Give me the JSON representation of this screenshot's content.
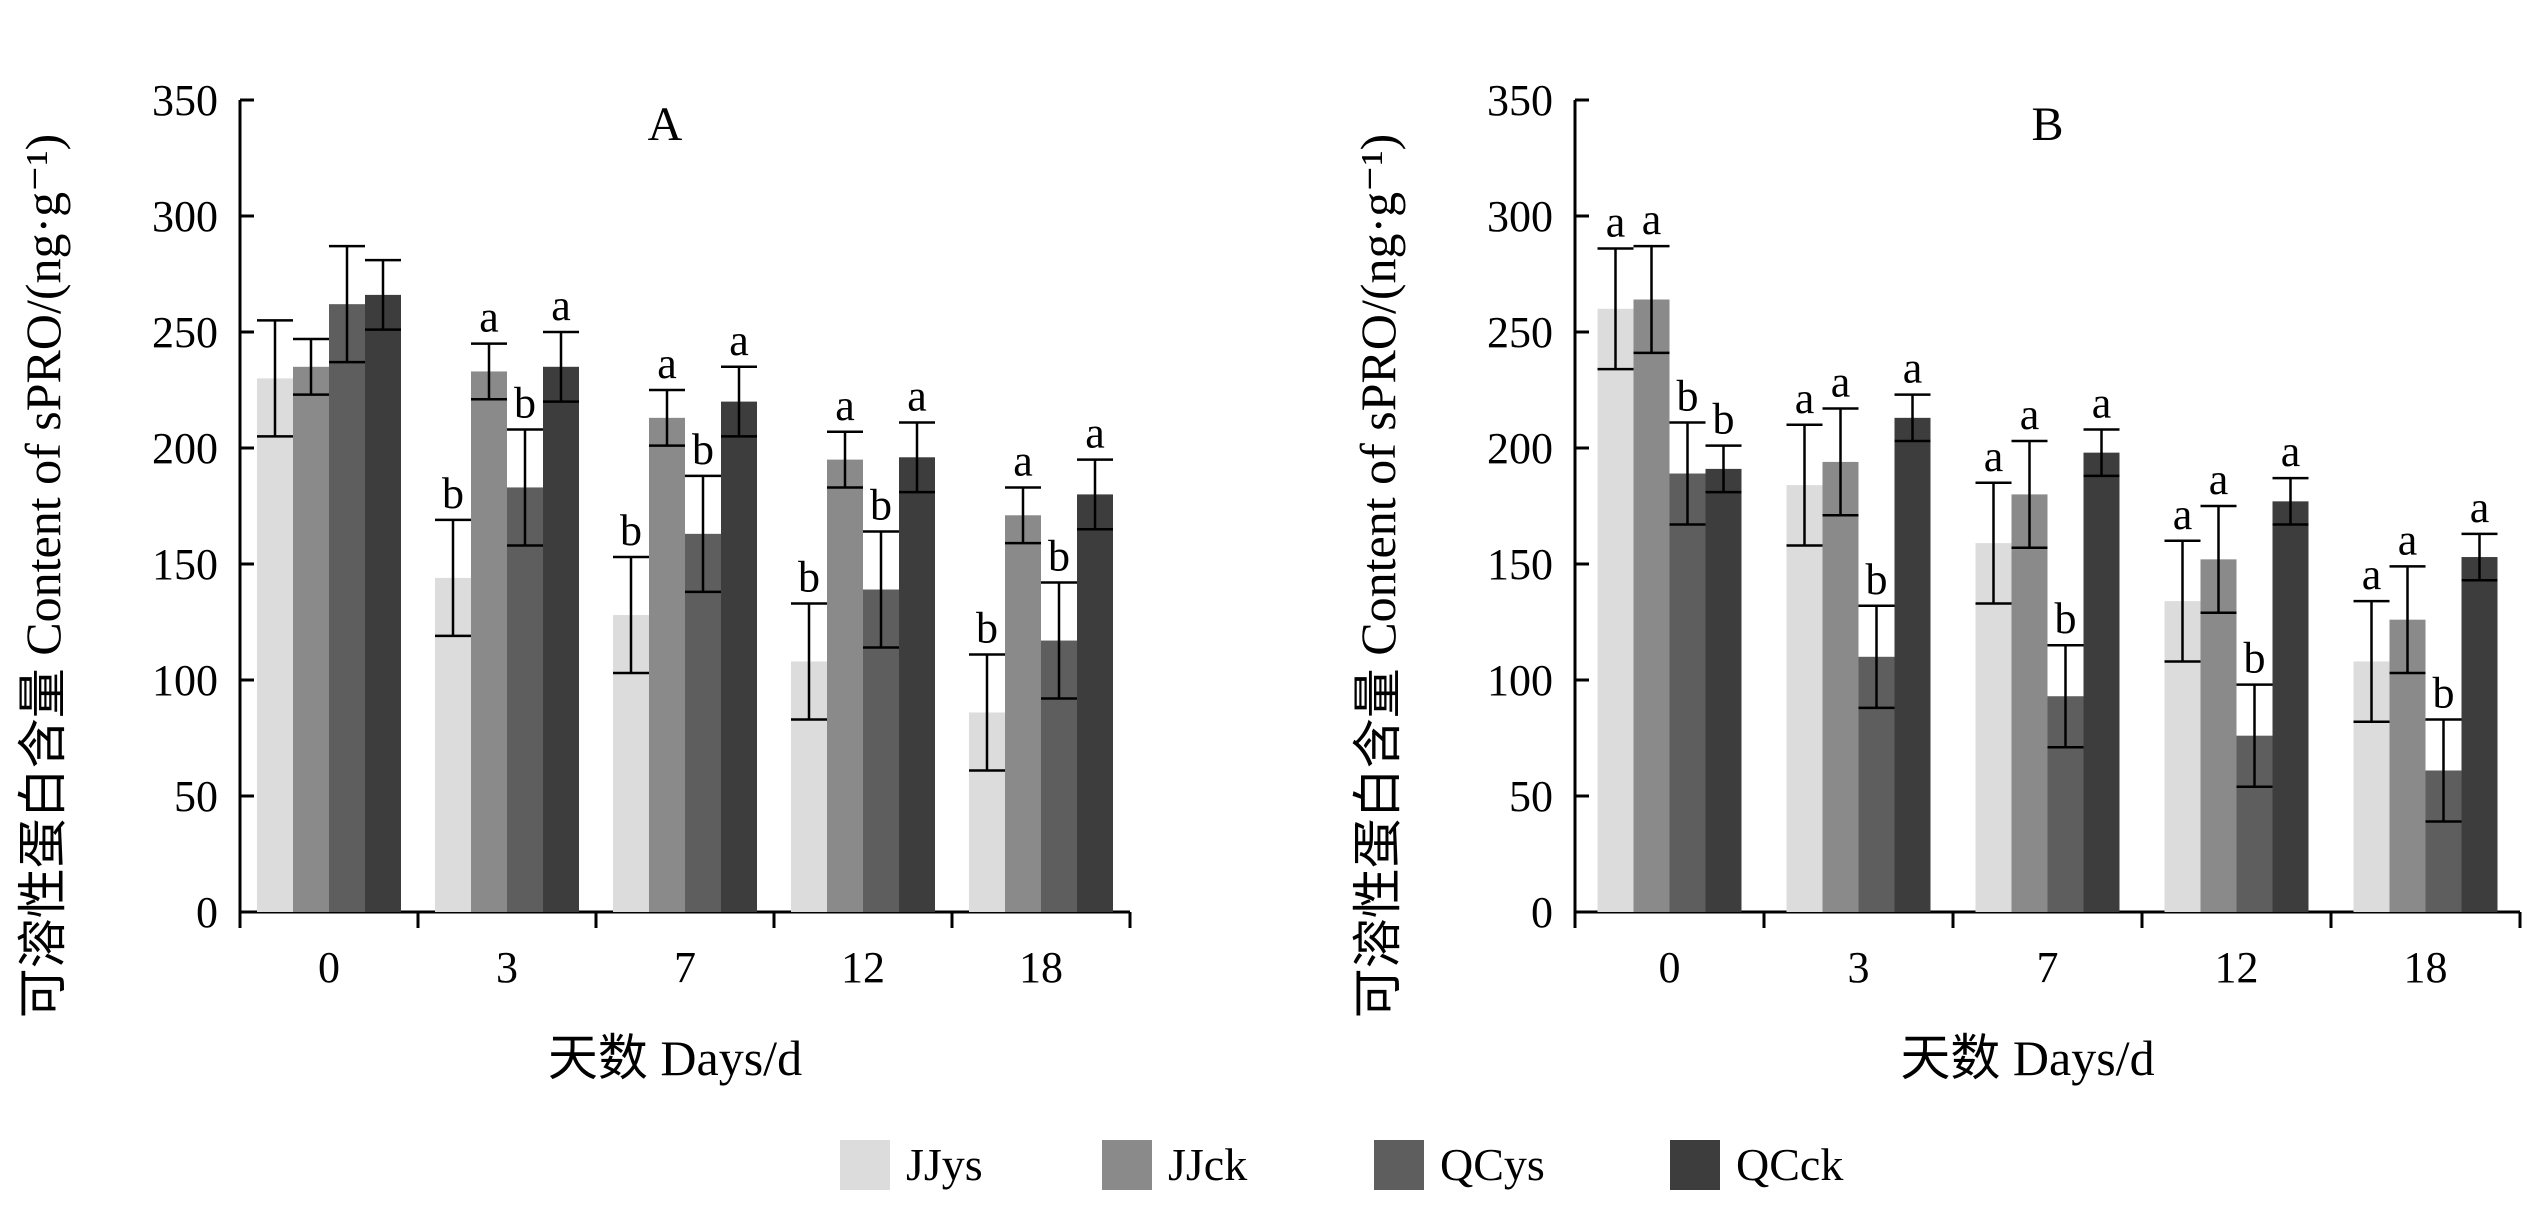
{
  "legend": {
    "position": "bottom",
    "items": [
      {
        "label": "JJys",
        "color": "#dcdcdc"
      },
      {
        "label": "JJck",
        "color": "#8a8a8a"
      },
      {
        "label": "QCys",
        "color": "#5e5e5e"
      },
      {
        "label": "QCck",
        "color": "#3d3d3d"
      }
    ]
  },
  "chart_data": [
    {
      "type": "bar",
      "title": "A",
      "xlabel": "天数  Days/d",
      "ylabel": "可溶性蛋白含量  Content of sPRO/(ng·g⁻¹)",
      "categories": [
        "0",
        "3",
        "7",
        "12",
        "18"
      ],
      "ylim": [
        0,
        350
      ],
      "yticks": [
        0,
        50,
        100,
        150,
        200,
        250,
        300,
        350
      ],
      "grid": false,
      "series": [
        {
          "name": "JJys",
          "values": [
            230,
            144,
            128,
            108,
            86
          ],
          "errors": [
            25,
            25,
            25,
            25,
            25
          ],
          "labels": [
            "",
            "b",
            "b",
            "b",
            "b"
          ]
        },
        {
          "name": "JJck",
          "values": [
            235,
            233,
            213,
            195,
            171
          ],
          "errors": [
            12,
            12,
            12,
            12,
            12
          ],
          "labels": [
            "",
            "a",
            "a",
            "a",
            "a"
          ]
        },
        {
          "name": "QCys",
          "values": [
            262,
            183,
            163,
            139,
            117
          ],
          "errors": [
            25,
            25,
            25,
            25,
            25
          ],
          "labels": [
            "",
            "b",
            "b",
            "b",
            "b"
          ]
        },
        {
          "name": "QCck",
          "values": [
            266,
            235,
            220,
            196,
            180
          ],
          "errors": [
            15,
            15,
            15,
            15,
            15
          ],
          "labels": [
            "",
            "a",
            "a",
            "a",
            "a"
          ]
        }
      ]
    },
    {
      "type": "bar",
      "title": "B",
      "xlabel": "天数  Days/d",
      "ylabel": "可溶性蛋白含量  Content of sPRO/(ng·g⁻¹)",
      "categories": [
        "0",
        "3",
        "7",
        "12",
        "18"
      ],
      "ylim": [
        0,
        350
      ],
      "yticks": [
        0,
        50,
        100,
        150,
        200,
        250,
        300,
        350
      ],
      "grid": false,
      "series": [
        {
          "name": "JJys",
          "values": [
            260,
            184,
            159,
            134,
            108
          ],
          "errors": [
            26,
            26,
            26,
            26,
            26
          ],
          "labels": [
            "a",
            "a",
            "a",
            "a",
            "a"
          ]
        },
        {
          "name": "JJck",
          "values": [
            264,
            194,
            180,
            152,
            126
          ],
          "errors": [
            23,
            23,
            23,
            23,
            23
          ],
          "labels": [
            "a",
            "a",
            "a",
            "a",
            "a"
          ]
        },
        {
          "name": "QCys",
          "values": [
            189,
            110,
            93,
            76,
            61
          ],
          "errors": [
            22,
            22,
            22,
            22,
            22
          ],
          "labels": [
            "b",
            "b",
            "b",
            "b",
            "b"
          ]
        },
        {
          "name": "QCck",
          "values": [
            191,
            213,
            198,
            177,
            153
          ],
          "errors": [
            10,
            10,
            10,
            10,
            10
          ],
          "labels": [
            "b",
            "a",
            "a",
            "a",
            "a"
          ]
        }
      ]
    }
  ]
}
